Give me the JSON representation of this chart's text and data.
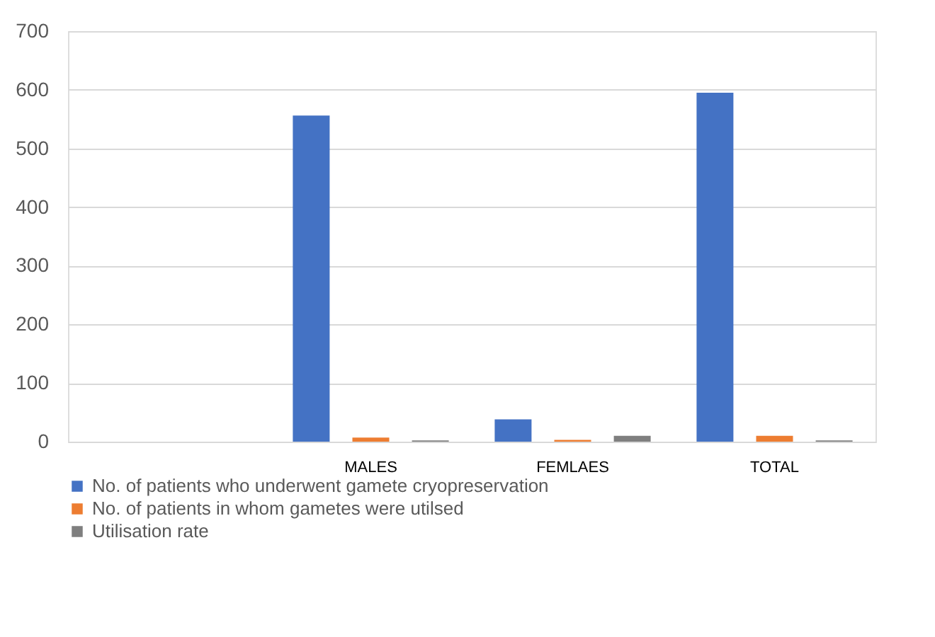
{
  "chart_data": {
    "type": "bar",
    "categories": [
      null,
      "MALES",
      "FEMLAES",
      "TOTAL"
    ],
    "series": [
      {
        "name": "No. of patients who underwent gamete cryopreservation",
        "color": "#4472c4",
        "values": [
          null,
          556,
          38,
          595
        ]
      },
      {
        "name": "No. of patients in whom gametes were utilsed",
        "color": "#ed7d31",
        "values": [
          null,
          7,
          3,
          10
        ]
      },
      {
        "name": "Utilisation rate",
        "color": "#7f7f7f",
        "values": [
          null,
          2,
          10,
          2
        ]
      }
    ],
    "ylim": [
      0,
      700
    ],
    "yticks": [
      0,
      100,
      200,
      300,
      400,
      500,
      600,
      700
    ],
    "grid": "y",
    "legend": "bottom"
  }
}
